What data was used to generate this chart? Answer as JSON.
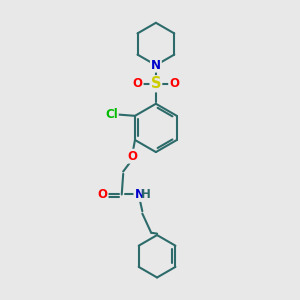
{
  "background_color": "#e8e8e8",
  "bond_color": "#2d6b6b",
  "atom_colors": {
    "N": "#0000cc",
    "O": "#ff0000",
    "S": "#cccc00",
    "Cl": "#00bb00",
    "C": "#2d6b6b",
    "H": "#2d6b6b"
  },
  "bond_width": 1.5,
  "font_size": 8.5,
  "figsize": [
    3.0,
    3.0
  ],
  "dpi": 100
}
